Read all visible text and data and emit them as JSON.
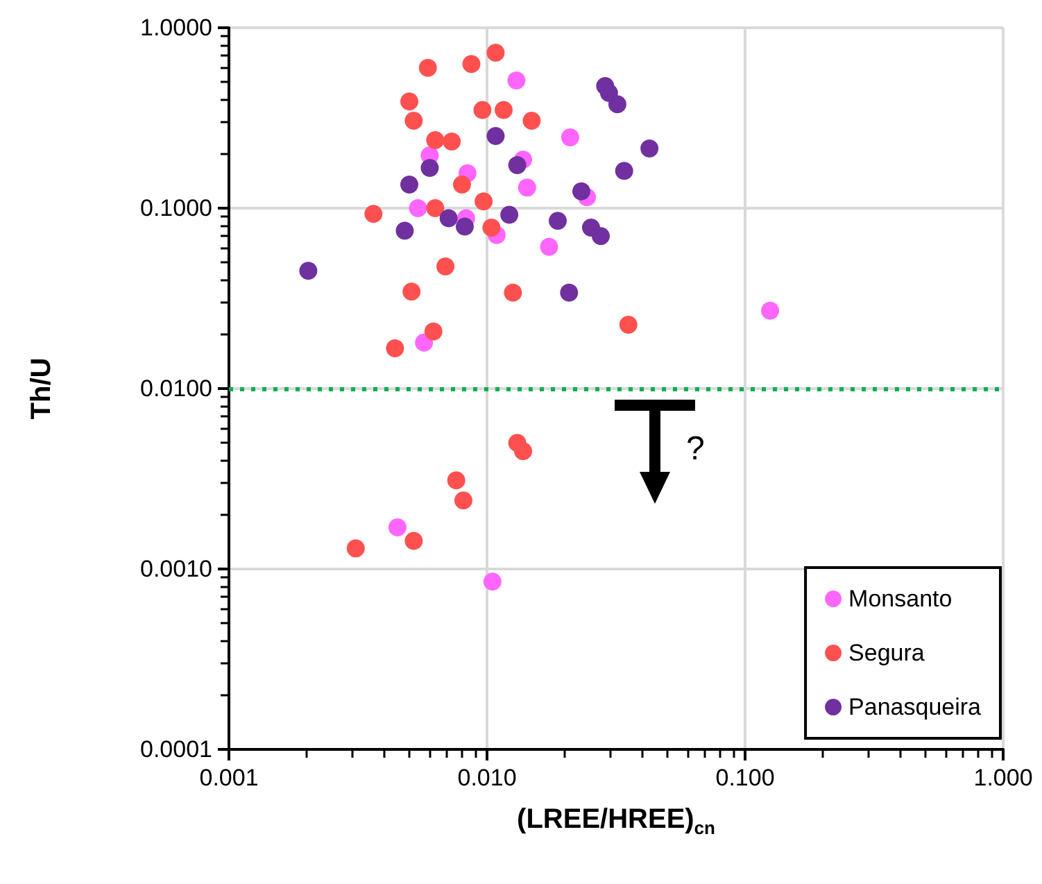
{
  "chart_data": {
    "type": "scatter",
    "xlabel": "(LREE/HREE)$_{cn}$",
    "ylabel": "Th/U",
    "log": "xy",
    "grid": true,
    "legend": "bottom right",
    "marker": "circle",
    "xlim": [
      0.001,
      1
    ],
    "ylim": [
      0.0001,
      1
    ],
    "xticks": [
      {
        "value": 0.001,
        "label": "0.001"
      },
      {
        "value": 0.01,
        "label": "0.010"
      },
      {
        "value": 0.1,
        "label": "0.100"
      },
      {
        "value": 1,
        "label": "1.000"
      }
    ],
    "yticks": [
      {
        "value": 0.0001,
        "label": "0.0001"
      },
      {
        "value": 0.001,
        "label": "0.0010"
      },
      {
        "value": 0.01,
        "label": "0.0100"
      },
      {
        "value": 0.1,
        "label": "0.1000"
      },
      {
        "value": 1,
        "label": "1.0000"
      }
    ],
    "ref_lines": [
      {
        "axis": "y",
        "value": 0.01,
        "label": null,
        "color": "#00b050",
        "line_style": "dotted"
      }
    ],
    "annotations": [
      "?"
    ],
    "series": [
      {
        "name": "Monsanto",
        "color": "#ff66ff",
        "x": [
          0.013,
          0.021,
          0.006,
          0.0138,
          0.0084,
          0.0143,
          0.0244,
          0.0054,
          0.0083,
          0.0109,
          0.0174,
          0.0057,
          0.125,
          0.0045,
          0.0105
        ],
        "values": [
          0.51,
          0.247,
          0.196,
          0.186,
          0.156,
          0.13,
          0.115,
          0.1,
          0.088,
          0.071,
          0.061,
          0.018,
          0.027,
          0.0017,
          0.00085
        ]
      },
      {
        "name": "Segura",
        "color": "#ff5050",
        "x": [
          0.0108,
          0.0087,
          0.0059,
          0.005,
          0.0052,
          0.0096,
          0.0116,
          0.0149,
          0.0063,
          0.0073,
          0.008,
          0.0097,
          0.0063,
          0.00363,
          0.0104,
          0.0069,
          0.0051,
          0.0126,
          0.0062,
          0.0044,
          0.0353,
          0.0131,
          0.0138,
          0.0076,
          0.0081,
          0.0052,
          0.0031
        ],
        "values": [
          0.727,
          0.63,
          0.6,
          0.39,
          0.305,
          0.35,
          0.35,
          0.305,
          0.238,
          0.234,
          0.135,
          0.109,
          0.1,
          0.093,
          0.078,
          0.0475,
          0.0345,
          0.034,
          0.0207,
          0.0167,
          0.0226,
          0.005,
          0.0045,
          0.0031,
          0.0024,
          0.00143,
          0.0013
        ]
      },
      {
        "name": "Panasqueira",
        "color": "#7030a0",
        "x": [
          0.0287,
          0.0297,
          0.032,
          0.0426,
          0.034,
          0.0232,
          0.0108,
          0.0131,
          0.006,
          0.005,
          0.0071,
          0.0082,
          0.0122,
          0.0188,
          0.0253,
          0.0276,
          0.0048,
          0.00203,
          0.0208
        ],
        "values": [
          0.475,
          0.435,
          0.377,
          0.214,
          0.161,
          0.124,
          0.251,
          0.173,
          0.167,
          0.135,
          0.088,
          0.079,
          0.092,
          0.085,
          0.078,
          0.07,
          0.075,
          0.045,
          0.034
        ]
      }
    ]
  }
}
